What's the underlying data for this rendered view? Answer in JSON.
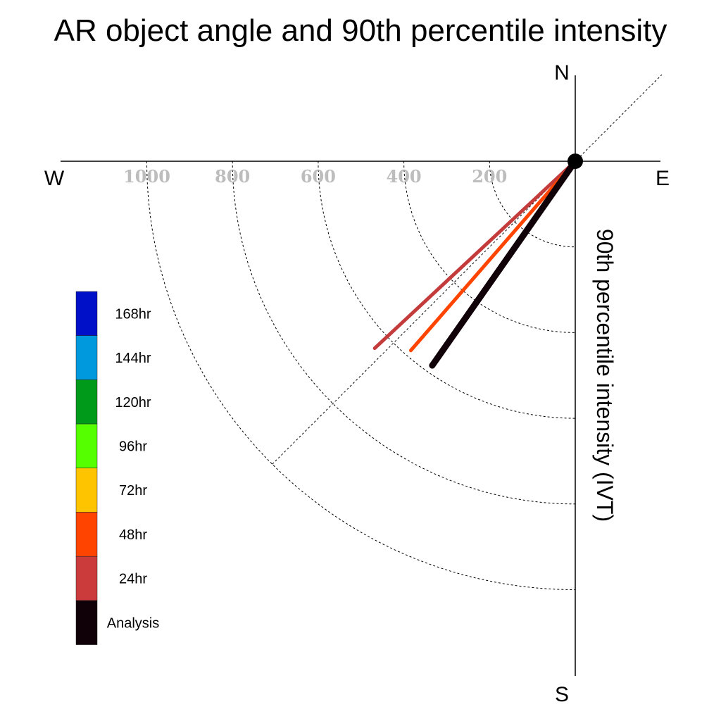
{
  "chart_data": {
    "type": "polar-line",
    "title": "AR object angle and 90th percentile intensity",
    "radial_label": "90th percentile intensity (IVT)",
    "compass": {
      "north": "N",
      "south": "S",
      "east": "E",
      "west": "W"
    },
    "radial_ticks": [
      "200",
      "400",
      "600",
      "800",
      "1000"
    ],
    "radial_max": 1000,
    "legend": [
      {
        "label": "168hr",
        "color": "#0010c8"
      },
      {
        "label": "144hr",
        "color": "#0099dd"
      },
      {
        "label": "120hr",
        "color": "#009a1a"
      },
      {
        "label": "96hr",
        "color": "#55ff00"
      },
      {
        "label": "72hr",
        "color": "#ffc400"
      },
      {
        "label": "48hr",
        "color": "#ff4400"
      },
      {
        "label": "24hr",
        "color": "#cc3b3b"
      },
      {
        "label": "Analysis",
        "color": "#100008"
      }
    ],
    "series": [
      {
        "name": "24hr",
        "angle_deg": 227,
        "intensity": 640,
        "color": "#c33b3b"
      },
      {
        "name": "48hr",
        "angle_deg": 221,
        "intensity": 585,
        "color": "#ff4400"
      },
      {
        "name": "Analysis",
        "angle_deg": 215,
        "intensity": 582,
        "color": "#100008"
      }
    ]
  }
}
